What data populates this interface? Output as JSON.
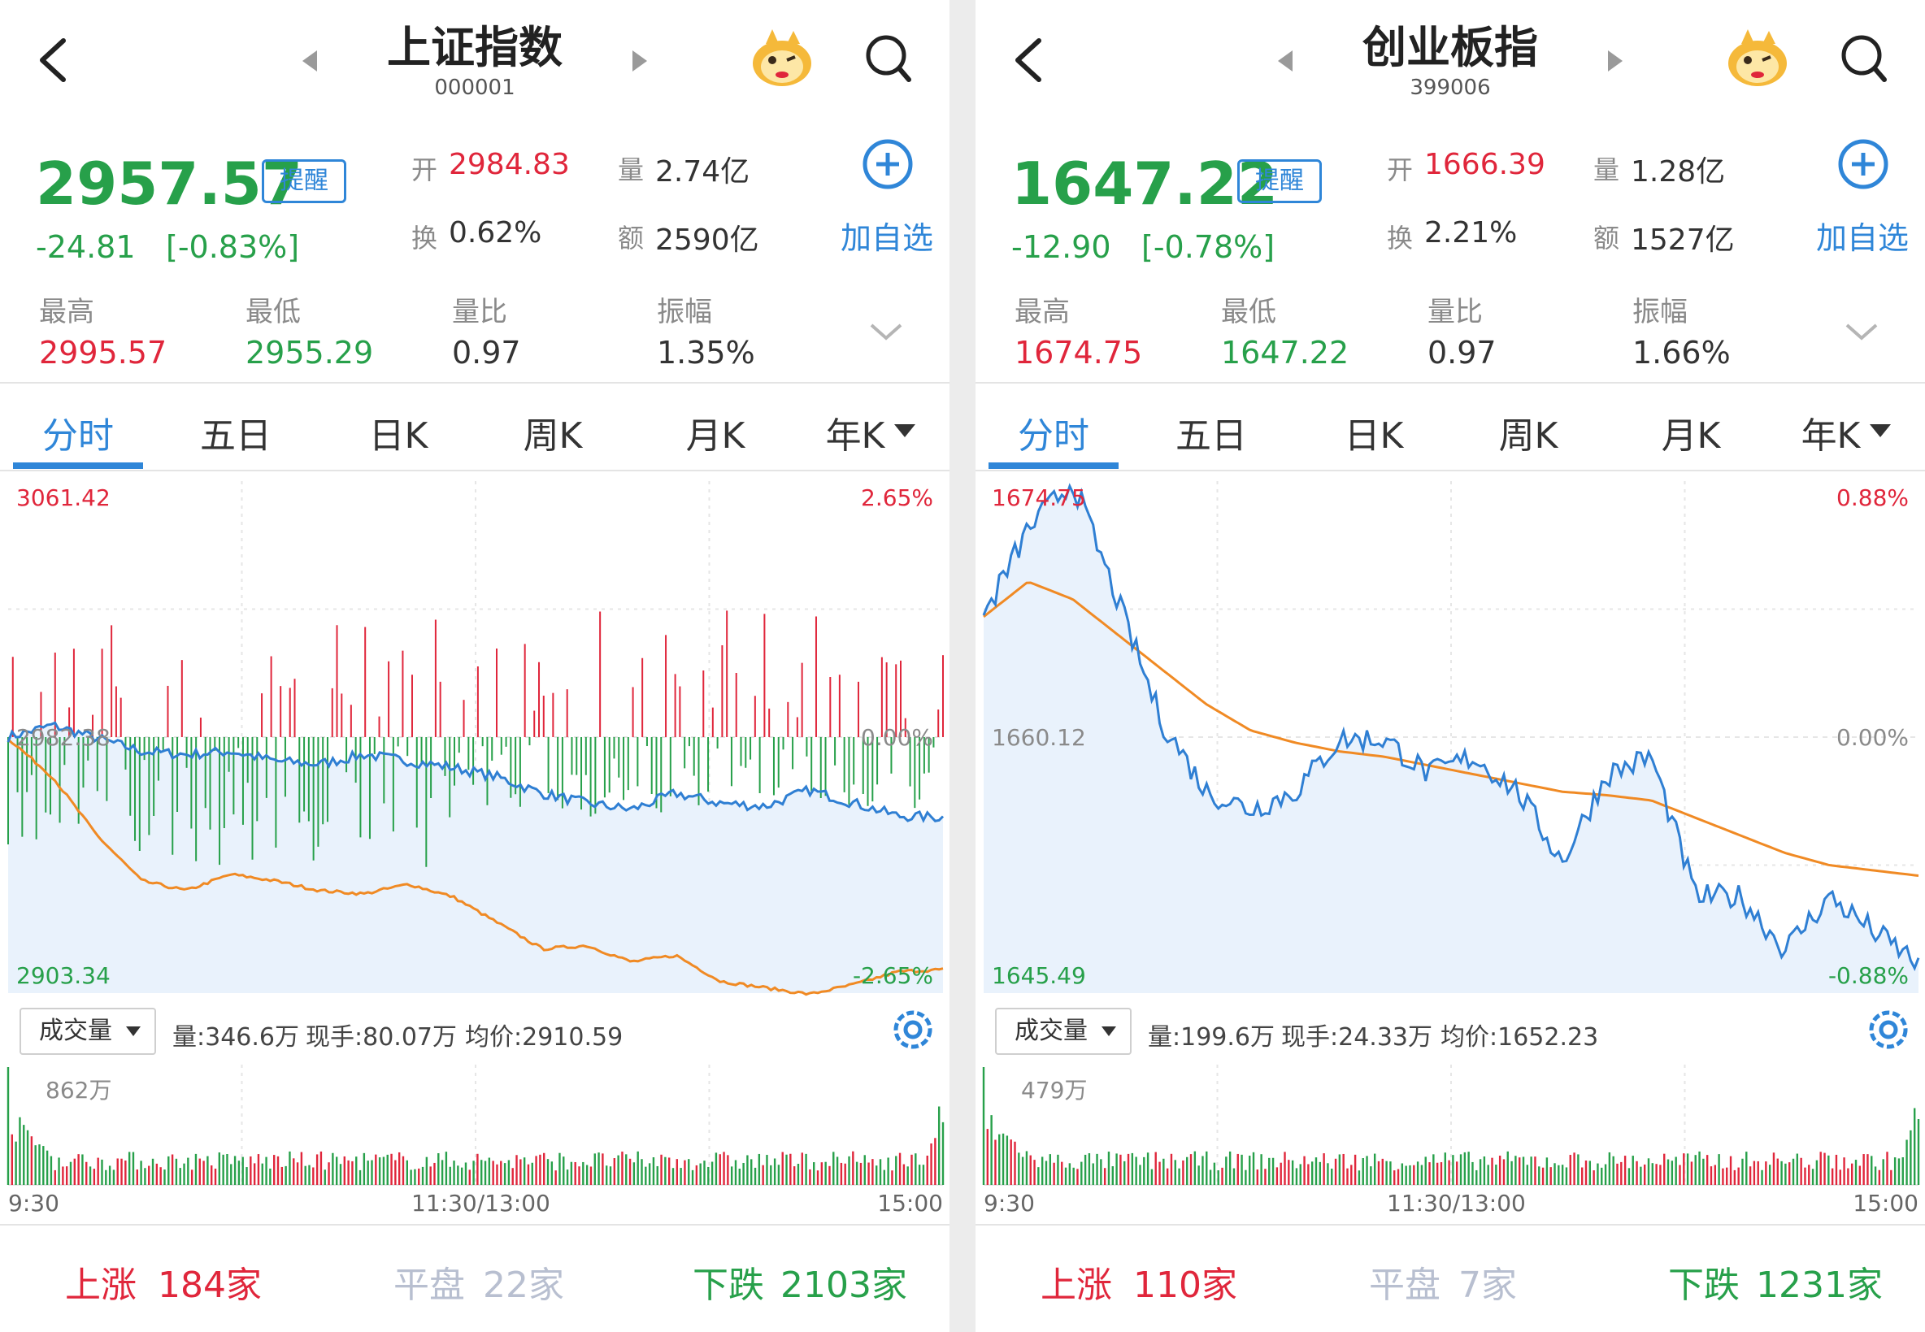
{
  "panels": [
    {
      "header": {
        "title": "上证指数",
        "code": "000001"
      },
      "quote": {
        "price": "2957.57",
        "change": "-24.81",
        "change_pct": "[-0.83%]",
        "remind_label": "提醒",
        "open_label": "开",
        "open": "2984.83",
        "turnover_label": "换",
        "turnover": "0.62%",
        "volume_label": "量",
        "volume": "2.74亿",
        "amount_label": "额",
        "amount": "2590亿",
        "add_label": "加自选",
        "high_label": "最高",
        "high": "2995.57",
        "low_label": "最低",
        "low": "2955.29",
        "ratio_label": "量比",
        "ratio": "0.97",
        "amp_label": "振幅",
        "amp": "1.35%"
      },
      "tabs": [
        "分时",
        "五日",
        "日K",
        "周K",
        "月K",
        "年K"
      ],
      "chart": {
        "top_price": "3061.42",
        "mid_price": "2982.38",
        "bottom_price": "2903.34",
        "top_pct": "2.65%",
        "mid_pct": "0.00%",
        "bottom_pct": "-2.65%"
      },
      "volume_bar": {
        "selector": "成交量",
        "vol": "量:346.6万",
        "now": "现手:80.07万",
        "avg": "均价:2910.59",
        "max": "862万"
      },
      "times": {
        "start": "9:30",
        "mid": "11:30/13:00",
        "end": "15:00"
      },
      "footer": {
        "up_label": "上涨",
        "up_count": "184家",
        "flat_label": "平盘",
        "flat_count": "22家",
        "down_label": "下跌",
        "down_count": "2103家"
      }
    },
    {
      "header": {
        "title": "创业板指",
        "code": "399006"
      },
      "quote": {
        "price": "1647.22",
        "change": "-12.90",
        "change_pct": "[-0.78%]",
        "remind_label": "提醒",
        "open_label": "开",
        "open": "1666.39",
        "turnover_label": "换",
        "turnover": "2.21%",
        "volume_label": "量",
        "volume": "1.28亿",
        "amount_label": "额",
        "amount": "1527亿",
        "add_label": "加自选",
        "high_label": "最高",
        "high": "1674.75",
        "low_label": "最低",
        "low": "1647.22",
        "ratio_label": "量比",
        "ratio": "0.97",
        "amp_label": "振幅",
        "amp": "1.66%"
      },
      "tabs": [
        "分时",
        "五日",
        "日K",
        "周K",
        "月K",
        "年K"
      ],
      "chart": {
        "top_price": "1674.75",
        "mid_price": "1660.12",
        "bottom_price": "1645.49",
        "top_pct": "0.88%",
        "mid_pct": "0.00%",
        "bottom_pct": "-0.88%"
      },
      "volume_bar": {
        "selector": "成交量",
        "vol": "量:199.6万",
        "now": "现手:24.33万",
        "avg": "均价:1652.23",
        "max": "479万"
      },
      "times": {
        "start": "9:30",
        "mid": "11:30/13:00",
        "end": "15:00"
      },
      "footer": {
        "up_label": "上涨",
        "up_count": "110家",
        "flat_label": "平盘",
        "flat_count": "7家",
        "down_label": "下跌",
        "down_count": "1231家"
      }
    }
  ],
  "colors": {
    "up": "#e0263b",
    "down": "#27a04a",
    "accent": "#2f86d8",
    "avg_line": "#f08a24",
    "price_line": "#2f7fd3",
    "fill": "#e9f2fc"
  },
  "icons": [
    "back-icon",
    "prev-arrow-icon",
    "next-arrow-icon",
    "mascot-icon",
    "search-icon",
    "add-circle-icon",
    "expand-chevron-icon",
    "settings-gear-icon",
    "dropdown-triangle-icon"
  ],
  "chart_data": [
    {
      "type": "line",
      "title": "上证指数",
      "ylim": [
        2903.34,
        3061.42
      ],
      "x_ticks": [
        "9:30",
        "11:30/13:00",
        "15:00"
      ],
      "series": [
        {
          "values": [
            2982.4,
            2986,
            2982,
            2978,
            2977,
            2978,
            2975,
            2974,
            2977,
            2975,
            2973,
            2970,
            2965,
            2962,
            2960,
            2965,
            2962,
            2961,
            2966,
            2962,
            2958,
            2957.6
          ]
        },
        {
          "values": [
            2982,
            2970,
            2952,
            2938,
            2935,
            2940,
            2938,
            2935,
            2934,
            2937,
            2933,
            2925,
            2917,
            2918,
            2913,
            2915,
            2907,
            2905,
            2903,
            2906,
            2910,
            2910.6
          ]
        }
      ]
    },
    {
      "type": "line",
      "title": "创业板指",
      "ylim": [
        1645.49,
        1674.75
      ],
      "x_ticks": [
        "9:30",
        "11:30/13:00",
        "15:00"
      ],
      "series": [
        {
          "values": [
            1667,
            1672,
            1674.75,
            1668,
            1661,
            1657,
            1656,
            1657,
            1660,
            1660,
            1658,
            1659,
            1657,
            1653,
            1658,
            1659,
            1651,
            1651,
            1648,
            1651,
            1649,
            1647.2
          ]
        },
        {
          "values": [
            1667,
            1669,
            1668,
            1666,
            1664,
            1662,
            1660.5,
            1659.8,
            1659.3,
            1659,
            1658.5,
            1658,
            1657.5,
            1657,
            1656.8,
            1656.5,
            1655.5,
            1654.5,
            1653.5,
            1652.8,
            1652.5,
            1652.2
          ]
        }
      ]
    }
  ]
}
